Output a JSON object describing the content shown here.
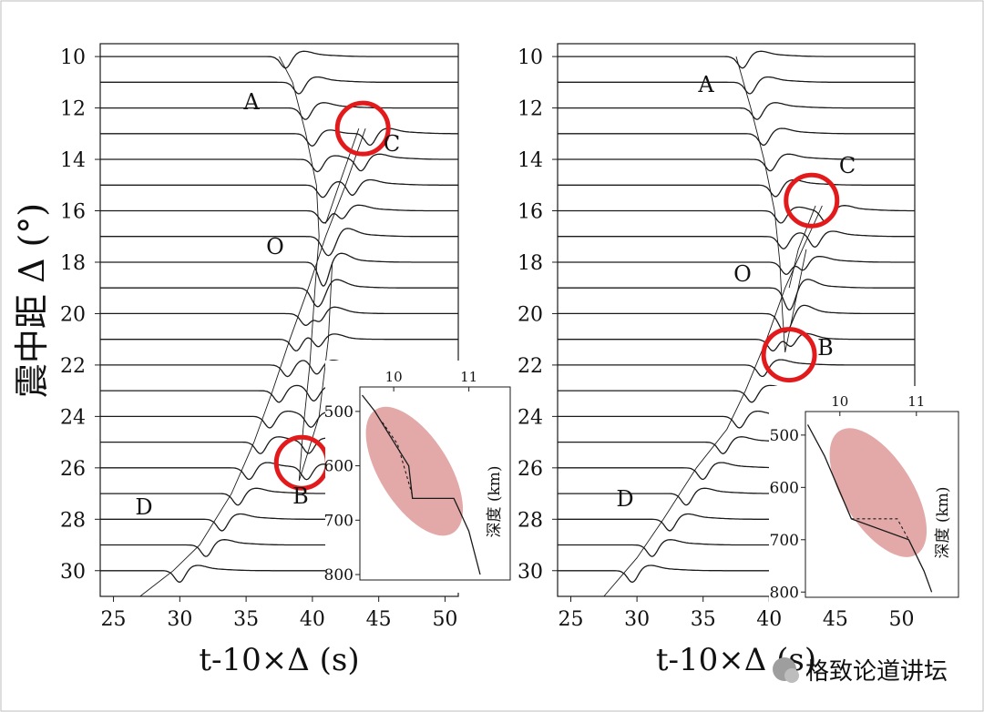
{
  "figure": {
    "ylabel": "震中距 Δ (°)",
    "watermark": "格致论道讲坛",
    "colors": {
      "trace": "#1a1a1a",
      "highlight": "#e31a1c",
      "ellipse": "#d98c8c",
      "frame": "#bdbdbd"
    }
  },
  "chart_data": [
    {
      "type": "line",
      "panel": "left",
      "xlabel": "t-10×Δ (s)",
      "xlim": [
        24,
        51
      ],
      "xticks": [
        25,
        30,
        35,
        40,
        45,
        50
      ],
      "ylim": [
        31,
        9.5
      ],
      "yticks": [
        10,
        12,
        14,
        16,
        18,
        20,
        22,
        24,
        26,
        28,
        30
      ],
      "traces_distances_deg": [
        10,
        11,
        12,
        13,
        14,
        15,
        16,
        17,
        18,
        19,
        20,
        21,
        22,
        23,
        24,
        25,
        26,
        27,
        28,
        29,
        30
      ],
      "branch_labels": [
        "A",
        "O",
        "C",
        "B",
        "D"
      ],
      "branches": [
        {
          "name": "A",
          "points": [
            [
              37.5,
              10
            ],
            [
              38.5,
              11
            ],
            [
              39.5,
              13
            ],
            [
              40.3,
              15
            ],
            [
              40.5,
              17
            ],
            [
              40.2,
              19
            ],
            [
              39.8,
              22
            ],
            [
              39.3,
              24.5
            ],
            [
              39.0,
              26.5
            ]
          ]
        },
        {
          "name": "O",
          "points": [
            [
              44.0,
              12.8
            ],
            [
              42.5,
              15
            ],
            [
              41.0,
              17
            ],
            [
              39.7,
              19
            ],
            [
              38.3,
              21
            ],
            [
              37.0,
              23
            ],
            [
              35.6,
              25
            ],
            [
              33.9,
              27
            ],
            [
              31.5,
              29
            ],
            [
              29.5,
              30
            ],
            [
              27.0,
              31
            ]
          ]
        },
        {
          "name": "C",
          "points": [
            [
              43.5,
              12.8
            ],
            [
              42.0,
              15
            ],
            [
              41.0,
              16.5
            ]
          ]
        },
        {
          "name": "B",
          "points": [
            [
              39.0,
              26.5
            ],
            [
              40.5,
              24
            ],
            [
              41.2,
              21
            ],
            [
              41.5,
              18
            ]
          ]
        }
      ],
      "highlights": [
        {
          "at": [
            43.8,
            12.8
          ]
        },
        {
          "at": [
            39.2,
            25.8
          ]
        }
      ],
      "inset": {
        "xlabel": "",
        "ylabel": "深度 (km)",
        "xticks": [
          10,
          11
        ],
        "yticks": [
          500,
          600,
          700,
          800
        ],
        "xlim": [
          9.55,
          11.55
        ],
        "ylim": [
          810,
          455
        ],
        "profile": [
          [
            9.58,
            470
          ],
          [
            9.75,
            500
          ],
          [
            9.95,
            545
          ],
          [
            10.2,
            600
          ],
          [
            10.25,
            660
          ],
          [
            10.8,
            660
          ],
          [
            11.0,
            720
          ],
          [
            11.15,
            800
          ]
        ],
        "dashed": [
          [
            9.85,
            520
          ],
          [
            10.05,
            560
          ],
          [
            10.25,
            655
          ]
        ]
      }
    },
    {
      "type": "line",
      "panel": "right",
      "xlabel": "t-10×Δ (s)",
      "xlim": [
        24,
        51
      ],
      "xticks": [
        25,
        30,
        35,
        40,
        45,
        50
      ],
      "ylim": [
        31,
        9.5
      ],
      "yticks": [
        10,
        12,
        14,
        16,
        18,
        20,
        22,
        24,
        26,
        28,
        30
      ],
      "traces_distances_deg": [
        10,
        11,
        12,
        13,
        14,
        15,
        16,
        17,
        18,
        19,
        20,
        21,
        22,
        23,
        24,
        25,
        26,
        27,
        28,
        29,
        30
      ],
      "branch_labels": [
        "A",
        "O",
        "C",
        "B",
        "D"
      ],
      "branches": [
        {
          "name": "A",
          "points": [
            [
              37.5,
              10
            ],
            [
              38.6,
              12
            ],
            [
              39.6,
              14
            ],
            [
              40.4,
              16
            ],
            [
              40.8,
              18
            ],
            [
              41.0,
              20
            ],
            [
              41.2,
              21.5
            ]
          ]
        },
        {
          "name": "O",
          "points": [
            [
              44.0,
              15.8
            ],
            [
              42.5,
              17.5
            ],
            [
              41.2,
              19
            ],
            [
              39.8,
              21
            ],
            [
              38.2,
              23
            ],
            [
              36.8,
              24.5
            ],
            [
              34.5,
              26
            ],
            [
              32.0,
              28
            ],
            [
              30.0,
              29.5
            ],
            [
              27.5,
              31
            ]
          ]
        },
        {
          "name": "C",
          "points": [
            [
              43.5,
              15.8
            ],
            [
              42.2,
              17.5
            ],
            [
              41.5,
              19
            ]
          ]
        },
        {
          "name": "B",
          "points": [
            [
              41.2,
              21.5
            ],
            [
              42.0,
              19.5
            ],
            [
              42.8,
              17.5
            ]
          ]
        }
      ],
      "highlights": [
        {
          "at": [
            43.2,
            15.6
          ]
        },
        {
          "at": [
            41.5,
            21.6
          ]
        }
      ],
      "inset": {
        "xlabel": "",
        "ylabel": "深度 (km)",
        "xticks": [
          10,
          11
        ],
        "yticks": [
          500,
          600,
          700,
          800
        ],
        "xlim": [
          9.55,
          11.55
        ],
        "ylim": [
          810,
          455
        ],
        "profile": [
          [
            9.58,
            480
          ],
          [
            9.8,
            540
          ],
          [
            10.15,
            660
          ],
          [
            10.9,
            700
          ],
          [
            11.1,
            760
          ],
          [
            11.2,
            800
          ]
        ],
        "dashed": [
          [
            10.15,
            660
          ],
          [
            10.75,
            660
          ],
          [
            10.9,
            700
          ]
        ]
      }
    }
  ]
}
